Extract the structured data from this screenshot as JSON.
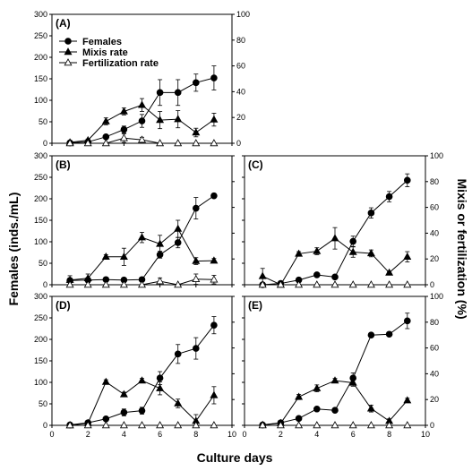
{
  "chart_data": {
    "type": "line",
    "xlabel": "Culture days",
    "ylabel_left": "Females (inds./mL)",
    "ylabel_right": "Mixis or fertilization (%)",
    "xlim": [
      0,
      10
    ],
    "xticks": [
      0,
      2,
      4,
      6,
      8,
      10
    ],
    "ylim_left": [
      0,
      300
    ],
    "yticks_left": [
      0,
      50,
      100,
      150,
      200,
      250,
      300
    ],
    "ylim_right": [
      0,
      100
    ],
    "yticks_right": [
      0,
      20,
      40,
      60,
      80,
      100
    ],
    "legend": {
      "placement": "top-left",
      "entries": [
        {
          "name": "Females",
          "marker": "filled-circle"
        },
        {
          "name": "Mixis rate",
          "marker": "filled-triangle"
        },
        {
          "name": "Fertilization rate",
          "marker": "open-triangle"
        }
      ]
    },
    "panels": [
      {
        "label": "(A)",
        "x": [
          1,
          2,
          3,
          4,
          5,
          6,
          7,
          8,
          9
        ],
        "series": [
          {
            "name": "Females",
            "axis": "left",
            "values": [
              1,
              3,
              15,
              32,
              52,
              118,
              118,
              141,
              152
            ],
            "errors": [
              1,
              2,
              5,
              8,
              15,
              30,
              30,
              20,
              28
            ]
          },
          {
            "name": "Mixis rate",
            "axis": "left",
            "values": [
              2,
              7,
              51,
              74,
              89,
              54,
              56,
              25,
              55
            ],
            "errors": [
              2,
              3,
              8,
              8,
              15,
              20,
              20,
              10,
              15
            ]
          },
          {
            "name": "Fertilization rate",
            "axis": "left",
            "values": [
              0,
              0,
              0,
              12,
              8,
              0,
              0,
              0,
              0
            ],
            "errors": [
              0,
              0,
              0,
              10,
              6,
              0,
              0,
              0,
              0
            ]
          }
        ]
      },
      {
        "label": "(B)",
        "x": [
          1,
          2,
          3,
          4,
          5,
          6,
          7,
          8,
          9
        ],
        "series": [
          {
            "name": "Females",
            "axis": "left",
            "values": [
              10,
              11,
              12,
              11,
              12,
              70,
              98,
              178,
              207
            ],
            "errors": [
              2,
              2,
              2,
              2,
              2,
              8,
              12,
              25,
              5
            ]
          },
          {
            "name": "Mixis rate",
            "axis": "left",
            "values": [
              11,
              15,
              65,
              65,
              110,
              95,
              130,
              55,
              56
            ],
            "errors": [
              10,
              10,
              5,
              20,
              12,
              20,
              20,
              8,
              5
            ]
          },
          {
            "name": "Fertilization rate",
            "axis": "left",
            "values": [
              0,
              0,
              0,
              0,
              0,
              8,
              0,
              13,
              12
            ],
            "errors": [
              0,
              0,
              0,
              0,
              0,
              8,
              0,
              12,
              10
            ]
          }
        ]
      },
      {
        "label": "(C)",
        "x": [
          1,
          2,
          3,
          4,
          5,
          6,
          7,
          8,
          9
        ],
        "series": [
          {
            "name": "Females",
            "axis": "left",
            "values": [
              0,
              3,
              11,
              23,
              18,
              101,
              167,
              205,
              243
            ],
            "errors": [
              0,
              1,
              2,
              4,
              3,
              12,
              12,
              12,
              15
            ]
          },
          {
            "name": "Mixis rate",
            "axis": "left",
            "values": [
              20,
              0,
              72,
              78,
              108,
              76,
              73,
              28,
              65
            ],
            "errors": [
              18,
              4,
              5,
              8,
              25,
              12,
              8,
              3,
              12
            ]
          },
          {
            "name": "Fertilization rate",
            "axis": "left",
            "values": [
              0,
              0,
              0,
              0,
              0,
              0,
              0,
              0,
              0
            ],
            "errors": [
              0,
              0,
              0,
              0,
              0,
              0,
              0,
              0,
              0
            ]
          }
        ]
      },
      {
        "label": "(D)",
        "x": [
          1,
          2,
          3,
          4,
          5,
          6,
          7,
          8,
          9
        ],
        "series": [
          {
            "name": "Females",
            "axis": "left",
            "values": [
              1,
              6,
              15,
              30,
              34,
              110,
              166,
              179,
              233
            ],
            "errors": [
              1,
              2,
              3,
              8,
              8,
              15,
              22,
              25,
              20
            ]
          },
          {
            "name": "Mixis rate",
            "axis": "left",
            "values": [
              0,
              5,
              101,
              72,
              104,
              86,
              51,
              10,
              70
            ],
            "errors": [
              0,
              5,
              5,
              5,
              5,
              15,
              10,
              15,
              20
            ]
          },
          {
            "name": "Fertilization rate",
            "axis": "left",
            "values": [
              0,
              0,
              0,
              0,
              0,
              0,
              0,
              0,
              0
            ],
            "errors": [
              0,
              0,
              0,
              0,
              0,
              0,
              0,
              0,
              0
            ]
          }
        ]
      },
      {
        "label": "(E)",
        "x": [
          1,
          2,
          3,
          4,
          5,
          6,
          7,
          8,
          9
        ],
        "series": [
          {
            "name": "Females",
            "axis": "left",
            "values": [
              1,
              6,
              16,
              38,
              35,
              110,
              210,
              212,
              243
            ],
            "errors": [
              1,
              2,
              3,
              4,
              4,
              12,
              5,
              5,
              18
            ]
          },
          {
            "name": "Mixis rate",
            "axis": "left",
            "values": [
              1,
              5,
              66,
              86,
              104,
              99,
              39,
              10,
              58
            ],
            "errors": [
              1,
              3,
              6,
              8,
              5,
              8,
              8,
              5,
              5
            ]
          },
          {
            "name": "Fertilization rate",
            "axis": "left",
            "values": [
              0,
              0,
              0,
              0,
              0,
              0,
              0,
              0,
              0
            ],
            "errors": [
              0,
              0,
              0,
              0,
              0,
              0,
              0,
              0,
              0
            ]
          }
        ]
      }
    ]
  }
}
